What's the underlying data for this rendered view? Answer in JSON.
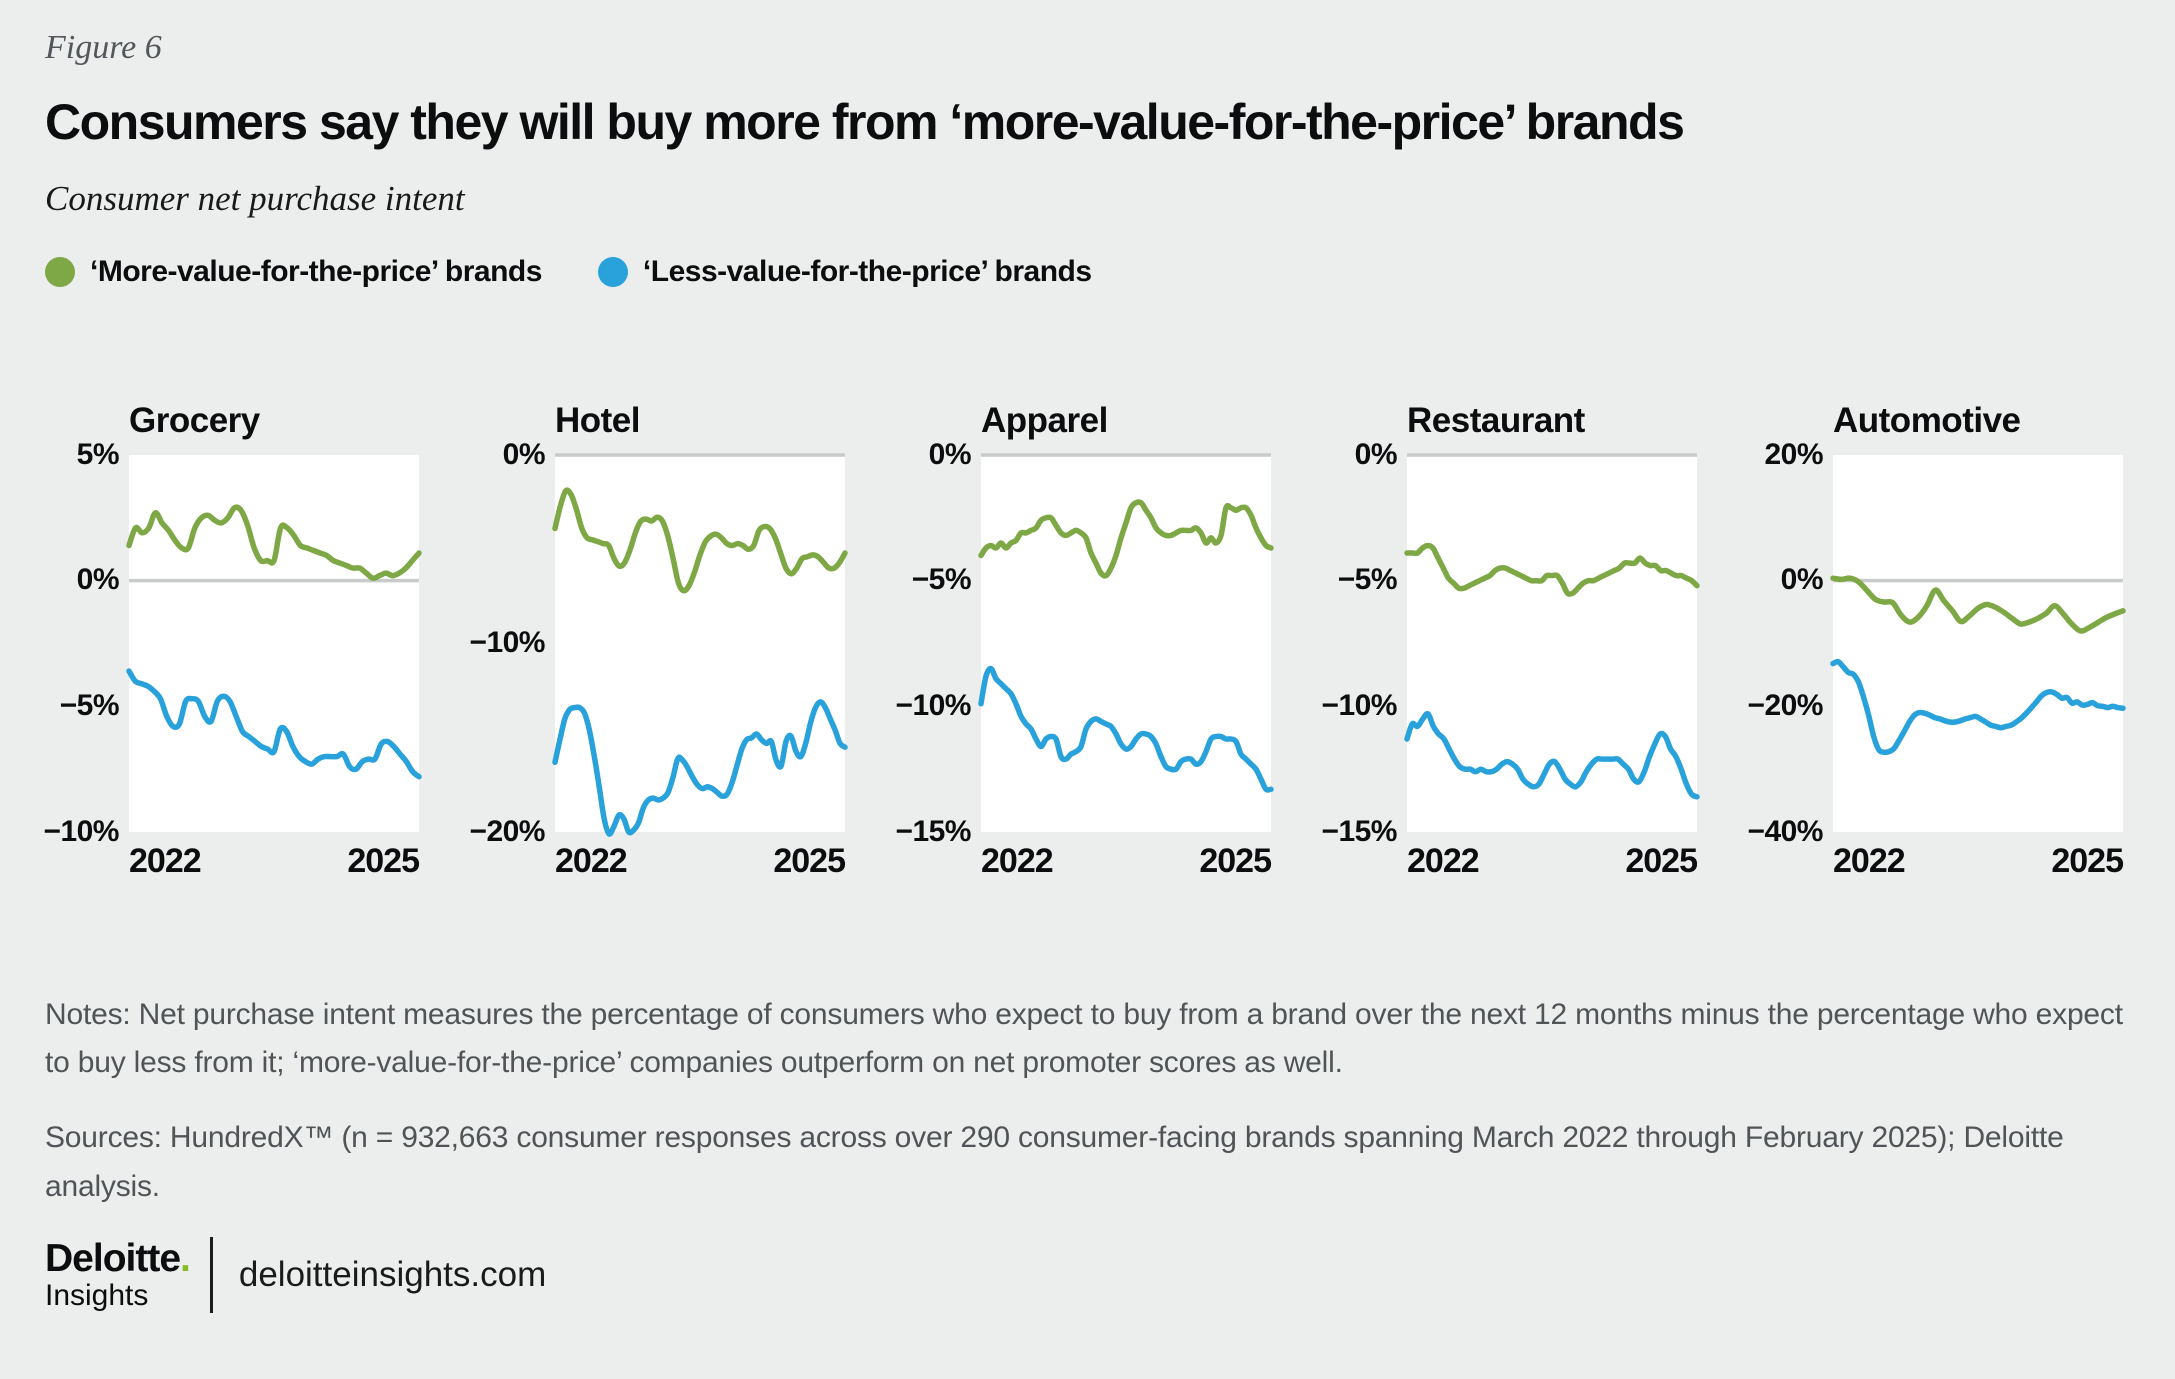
{
  "figure_label": "Figure 6",
  "title": "Consumers say they will buy more from ‘more-value-for-the-price’ brands",
  "subtitle": "Consumer net purchase intent",
  "legend": [
    {
      "label": "‘More-value-for-the-price’ brands",
      "color": "#7EA845"
    },
    {
      "label": "‘Less-value-for-the-price’ brands",
      "color": "#29A2DB"
    }
  ],
  "colors": {
    "background": "#ECEEED",
    "plot_background": "#FFFFFF",
    "gridline": "#C9CBCA",
    "green_series": "#7EA845",
    "blue_series": "#29A2DB",
    "logo_green": "#86BC25",
    "muted_text": "#515457"
  },
  "chart_data": [
    {
      "type": "line",
      "title": "Grocery",
      "ylim": [
        -10,
        5
      ],
      "yticks": [
        {
          "value": 5,
          "label": "5%"
        },
        {
          "value": 0,
          "label": "0%"
        },
        {
          "value": -5,
          "label": "−5%"
        },
        {
          "value": -10,
          "label": "−10%"
        }
      ],
      "x_ticks": [
        "2022",
        "2025"
      ],
      "x_range_note": "March 2022 through February 2025",
      "gridline_at": 0,
      "series": [
        {
          "name": "‘More-value-for-the-price’ brands",
          "color": "#7EA845",
          "values": [
            1.4,
            2.1,
            1.9,
            2.1,
            2.7,
            2.3,
            2.0,
            1.6,
            1.3,
            1.3,
            2.1,
            2.5,
            2.6,
            2.4,
            2.3,
            2.5,
            2.9,
            2.8,
            2.2,
            1.3,
            0.8,
            0.8,
            0.8,
            2.1,
            2.1,
            1.8,
            1.4,
            1.3,
            1.2,
            1.1,
            1.0,
            0.8,
            0.7,
            0.6,
            0.5,
            0.5,
            0.3,
            0.1,
            0.2,
            0.3,
            0.2,
            0.3,
            0.5,
            0.8,
            1.1
          ]
        },
        {
          "name": "‘Less-value-for-the-price’ brands",
          "color": "#29A2DB",
          "values": [
            -3.6,
            -4.0,
            -4.1,
            -4.2,
            -4.4,
            -4.7,
            -5.4,
            -5.8,
            -5.7,
            -4.8,
            -4.7,
            -4.8,
            -5.4,
            -5.6,
            -4.8,
            -4.6,
            -4.8,
            -5.4,
            -6.0,
            -6.2,
            -6.4,
            -6.6,
            -6.7,
            -6.8,
            -5.9,
            -6.0,
            -6.6,
            -7.0,
            -7.2,
            -7.3,
            -7.1,
            -7.0,
            -7.0,
            -7.0,
            -6.9,
            -7.4,
            -7.5,
            -7.2,
            -7.1,
            -7.1,
            -6.5,
            -6.4,
            -6.6,
            -6.9,
            -7.2,
            -7.6,
            -7.8
          ]
        }
      ]
    },
    {
      "type": "line",
      "title": "Hotel",
      "ylim": [
        -20,
        0
      ],
      "yticks": [
        {
          "value": 0,
          "label": "0%"
        },
        {
          "value": -10,
          "label": "−10%"
        },
        {
          "value": -20,
          "label": "−20%"
        }
      ],
      "x_ticks": [
        "2022",
        "2025"
      ],
      "x_range_note": "March 2022 through February 2025",
      "gridline_at": 0,
      "series": [
        {
          "name": "‘More-value-for-the-price’ brands",
          "color": "#7EA845",
          "values": [
            -3.9,
            -2.7,
            -1.9,
            -2.1,
            -2.9,
            -3.9,
            -4.4,
            -4.5,
            -4.6,
            -4.7,
            -4.8,
            -5.5,
            -5.9,
            -5.7,
            -5.0,
            -4.1,
            -3.5,
            -3.4,
            -3.5,
            -3.3,
            -3.5,
            -4.3,
            -5.5,
            -6.8,
            -7.2,
            -6.9,
            -6.2,
            -5.3,
            -4.6,
            -4.3,
            -4.2,
            -4.4,
            -4.7,
            -4.8,
            -4.7,
            -4.8,
            -5.0,
            -4.8,
            -4.0,
            -3.8,
            -3.9,
            -4.4,
            -5.2,
            -6.0,
            -6.3,
            -6.0,
            -5.5,
            -5.4,
            -5.3,
            -5.4,
            -5.7,
            -6.0,
            -6.0,
            -5.7,
            -5.2
          ]
        },
        {
          "name": "‘Less-value-for-the-price’ brands",
          "color": "#29A2DB",
          "values": [
            -16.3,
            -15.1,
            -14.0,
            -13.5,
            -13.4,
            -13.4,
            -13.7,
            -14.6,
            -16.0,
            -17.6,
            -19.3,
            -20.1,
            -19.7,
            -19.1,
            -19.3,
            -20.0,
            -19.9,
            -19.5,
            -18.7,
            -18.3,
            -18.2,
            -18.3,
            -18.2,
            -17.9,
            -17.1,
            -16.1,
            -16.2,
            -16.6,
            -17.1,
            -17.5,
            -17.7,
            -17.6,
            -17.7,
            -17.9,
            -18.1,
            -18.0,
            -17.4,
            -16.5,
            -15.6,
            -15.1,
            -15.0,
            -14.8,
            -15.1,
            -15.3,
            -15.2,
            -16.2,
            -16.5,
            -15.2,
            -14.9,
            -15.7,
            -16.0,
            -15.3,
            -14.2,
            -13.4,
            -13.1,
            -13.4,
            -14.0,
            -14.6,
            -15.3,
            -15.5
          ]
        }
      ]
    },
    {
      "type": "line",
      "title": "Apparel",
      "ylim": [
        -15,
        0
      ],
      "yticks": [
        {
          "value": 0,
          "label": "0%"
        },
        {
          "value": -5,
          "label": "−5%"
        },
        {
          "value": -10,
          "label": "−10%"
        },
        {
          "value": -15,
          "label": "−15%"
        }
      ],
      "x_ticks": [
        "2022",
        "2025"
      ],
      "x_range_note": "March 2022 through February 2025",
      "gridline_at": 0,
      "series": [
        {
          "name": "‘More-value-for-the-price’ brands",
          "color": "#7EA845",
          "values": [
            -4.0,
            -3.7,
            -3.6,
            -3.7,
            -3.5,
            -3.7,
            -3.5,
            -3.4,
            -3.1,
            -3.1,
            -3.0,
            -2.9,
            -2.6,
            -2.5,
            -2.5,
            -2.8,
            -3.1,
            -3.2,
            -3.1,
            -3.0,
            -3.1,
            -3.3,
            -3.9,
            -4.3,
            -4.7,
            -4.8,
            -4.5,
            -4.0,
            -3.3,
            -2.7,
            -2.1,
            -1.9,
            -1.9,
            -2.2,
            -2.5,
            -2.9,
            -3.1,
            -3.2,
            -3.2,
            -3.1,
            -3.0,
            -3.0,
            -3.0,
            -2.9,
            -3.1,
            -3.5,
            -3.3,
            -3.5,
            -3.2,
            -2.1,
            -2.1,
            -2.2,
            -2.1,
            -2.1,
            -2.4,
            -2.9,
            -3.3,
            -3.6,
            -3.7
          ]
        },
        {
          "name": "‘Less-value-for-the-price’ brands",
          "color": "#29A2DB",
          "values": [
            -9.9,
            -8.8,
            -8.5,
            -8.9,
            -9.1,
            -9.3,
            -9.5,
            -9.9,
            -10.4,
            -10.7,
            -10.9,
            -11.3,
            -11.6,
            -11.3,
            -11.2,
            -11.3,
            -12.0,
            -12.1,
            -11.9,
            -11.8,
            -11.6,
            -10.9,
            -10.6,
            -10.5,
            -10.6,
            -10.7,
            -10.8,
            -11.1,
            -11.5,
            -11.7,
            -11.6,
            -11.3,
            -11.1,
            -11.1,
            -11.2,
            -11.5,
            -12.0,
            -12.4,
            -12.5,
            -12.5,
            -12.2,
            -12.1,
            -12.1,
            -12.3,
            -12.2,
            -11.8,
            -11.3,
            -11.2,
            -11.2,
            -11.3,
            -11.3,
            -11.4,
            -11.9,
            -12.1,
            -12.3,
            -12.5,
            -12.9,
            -13.3,
            -13.3
          ]
        }
      ]
    },
    {
      "type": "line",
      "title": "Restaurant",
      "ylim": [
        -15,
        0
      ],
      "yticks": [
        {
          "value": 0,
          "label": "0%"
        },
        {
          "value": -5,
          "label": "−5%"
        },
        {
          "value": -10,
          "label": "−10%"
        },
        {
          "value": -15,
          "label": "−15%"
        }
      ],
      "x_ticks": [
        "2022",
        "2025"
      ],
      "x_range_note": "March 2022 through February 2025",
      "gridline_at": 0,
      "series": [
        {
          "name": "‘More-value-for-the-price’ brands",
          "color": "#7EA845",
          "values": [
            -3.9,
            -3.9,
            -3.9,
            -3.7,
            -3.6,
            -3.7,
            -4.1,
            -4.5,
            -4.9,
            -5.1,
            -5.3,
            -5.3,
            -5.2,
            -5.1,
            -5.0,
            -4.9,
            -4.8,
            -4.6,
            -4.5,
            -4.5,
            -4.6,
            -4.7,
            -4.8,
            -4.9,
            -5.0,
            -5.0,
            -5.0,
            -4.8,
            -4.8,
            -4.8,
            -5.1,
            -5.5,
            -5.5,
            -5.3,
            -5.1,
            -5.0,
            -5.0,
            -4.9,
            -4.8,
            -4.7,
            -4.6,
            -4.5,
            -4.3,
            -4.3,
            -4.3,
            -4.1,
            -4.3,
            -4.4,
            -4.4,
            -4.6,
            -4.6,
            -4.7,
            -4.8,
            -4.8,
            -4.9,
            -5.0,
            -5.2
          ]
        },
        {
          "name": "‘Less-value-for-the-price’ brands",
          "color": "#29A2DB",
          "values": [
            -11.3,
            -10.7,
            -10.8,
            -10.5,
            -10.3,
            -10.8,
            -11.1,
            -11.3,
            -11.7,
            -12.1,
            -12.4,
            -12.5,
            -12.5,
            -12.6,
            -12.5,
            -12.6,
            -12.6,
            -12.5,
            -12.3,
            -12.2,
            -12.3,
            -12.5,
            -12.9,
            -13.1,
            -13.2,
            -13.1,
            -12.7,
            -12.3,
            -12.2,
            -12.5,
            -12.9,
            -13.1,
            -13.2,
            -13.0,
            -12.6,
            -12.3,
            -12.1,
            -12.1,
            -12.1,
            -12.1,
            -12.1,
            -12.3,
            -12.5,
            -12.9,
            -13.0,
            -12.6,
            -12.0,
            -11.5,
            -11.1,
            -11.2,
            -11.7,
            -12.0,
            -12.5,
            -13.1,
            -13.5,
            -13.6
          ]
        }
      ]
    },
    {
      "type": "line",
      "title": "Automotive",
      "ylim": [
        -40,
        20
      ],
      "yticks": [
        {
          "value": 20,
          "label": "20%"
        },
        {
          "value": 0,
          "label": "0%"
        },
        {
          "value": -20,
          "label": "−20%"
        },
        {
          "value": -40,
          "label": "−40%"
        }
      ],
      "x_ticks": [
        "2022",
        "2025"
      ],
      "x_range_note": "March 2022 through February 2025",
      "gridline_at": 0,
      "series": [
        {
          "name": "‘More-value-for-the-price’ brands",
          "color": "#7EA845",
          "values": [
            0.4,
            0.2,
            0.4,
            -0.2,
            -1.6,
            -3.0,
            -3.4,
            -3.5,
            -5.5,
            -6.6,
            -5.8,
            -4.0,
            -1.5,
            -3.2,
            -4.8,
            -6.5,
            -5.6,
            -4.4,
            -3.8,
            -4.2,
            -5.0,
            -6.0,
            -6.9,
            -6.6,
            -6.0,
            -5.2,
            -4.0,
            -5.3,
            -6.9,
            -8.0,
            -7.5,
            -6.7,
            -5.9,
            -5.3,
            -4.8
          ]
        },
        {
          "name": "‘Less-value-for-the-price’ brands",
          "color": "#29A2DB",
          "values": [
            -13.2,
            -12.9,
            -13.7,
            -14.6,
            -14.9,
            -16.1,
            -18.5,
            -21.4,
            -24.8,
            -26.9,
            -27.3,
            -27.2,
            -26.7,
            -25.4,
            -24.0,
            -22.5,
            -21.4,
            -21.0,
            -21.1,
            -21.4,
            -21.8,
            -22.0,
            -22.3,
            -22.5,
            -22.5,
            -22.3,
            -22.0,
            -21.8,
            -21.6,
            -22.0,
            -22.5,
            -23.0,
            -23.2,
            -23.4,
            -23.2,
            -23.0,
            -22.5,
            -21.9,
            -21.1,
            -20.2,
            -19.3,
            -18.3,
            -17.8,
            -17.7,
            -18.1,
            -18.7,
            -18.6,
            -19.5,
            -19.3,
            -19.8,
            -19.7,
            -19.4,
            -19.9,
            -20.0,
            -20.2,
            -20.0,
            -20.2,
            -20.3
          ]
        }
      ]
    }
  ],
  "notes": "Notes: Net purchase intent measures the percentage of consumers who expect to buy from a brand over the next 12 months minus the percentage who expect to buy less from it; ‘more-value-for-the-price’ companies outperform on net promoter scores as well.",
  "sources": "Sources: HundredX™ (n = 932,663 consumer responses across over 290 consumer-facing brands spanning March 2022 through February 2025); Deloitte analysis.",
  "footer": {
    "brand_name": "Deloitte",
    "brand_dot": ".",
    "brand_sub": "Insights",
    "site": "deloitteinsights.com"
  }
}
